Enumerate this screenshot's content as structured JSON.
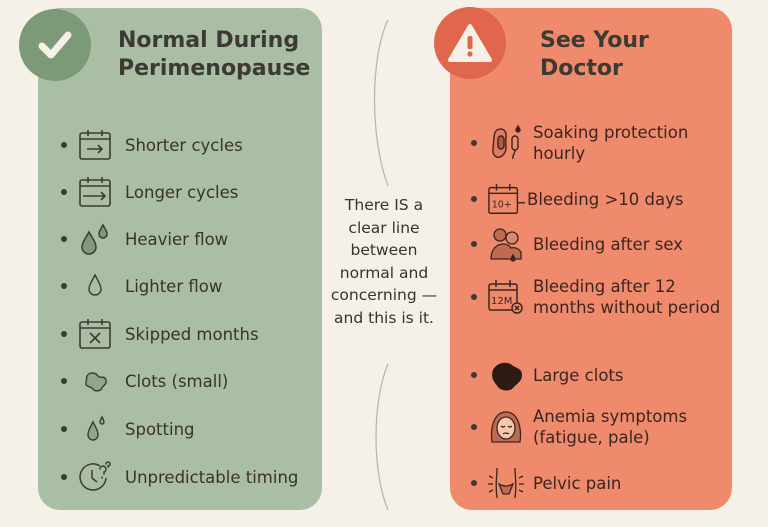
{
  "normal": {
    "title_line1": "Normal During",
    "title_line2": "Perimenopause",
    "badge_icon": "checkmark-icon",
    "color": "#a9bea2",
    "items": [
      {
        "label": "Shorter cycles",
        "icon": "calendar-arrow-icon"
      },
      {
        "label": "Longer cycles",
        "icon": "calendar-long-arrow-icon"
      },
      {
        "label": "Heavier flow",
        "icon": "double-drop-icon"
      },
      {
        "label": "Lighter flow",
        "icon": "drop-icon"
      },
      {
        "label": "Skipped months",
        "icon": "calendar-x-icon"
      },
      {
        "label": "Clots (small)",
        "icon": "clot-icon"
      },
      {
        "label": "Spotting",
        "icon": "small-drops-icon"
      },
      {
        "label": "Unpredictable timing",
        "icon": "clock-question-icon"
      }
    ]
  },
  "middle": {
    "text": "There IS a clear line between normal and concerning — and this is it."
  },
  "doctor": {
    "title_line1": "See Your",
    "title_line2": "Doctor",
    "badge_icon": "warning-icon",
    "color": "#f08a6c",
    "items": [
      {
        "label": "Soaking protection hourly",
        "icon": "pad-tampon-icon"
      },
      {
        "label": "Bleeding >10 days",
        "icon": "calendar-10-plus-icon",
        "icon_text": "10+"
      },
      {
        "label": "Bleeding after sex",
        "icon": "couple-icon"
      },
      {
        "label": "Bleeding after 12 months without period",
        "icon": "calendar-12m-icon",
        "icon_text": "12M"
      },
      {
        "label": "Large clots",
        "icon": "large-clot-icon"
      },
      {
        "label": "Anemia symptoms (fatigue, pale)",
        "icon": "tired-face-icon"
      },
      {
        "label": "Pelvic pain",
        "icon": "pelvic-pain-icon"
      }
    ]
  }
}
